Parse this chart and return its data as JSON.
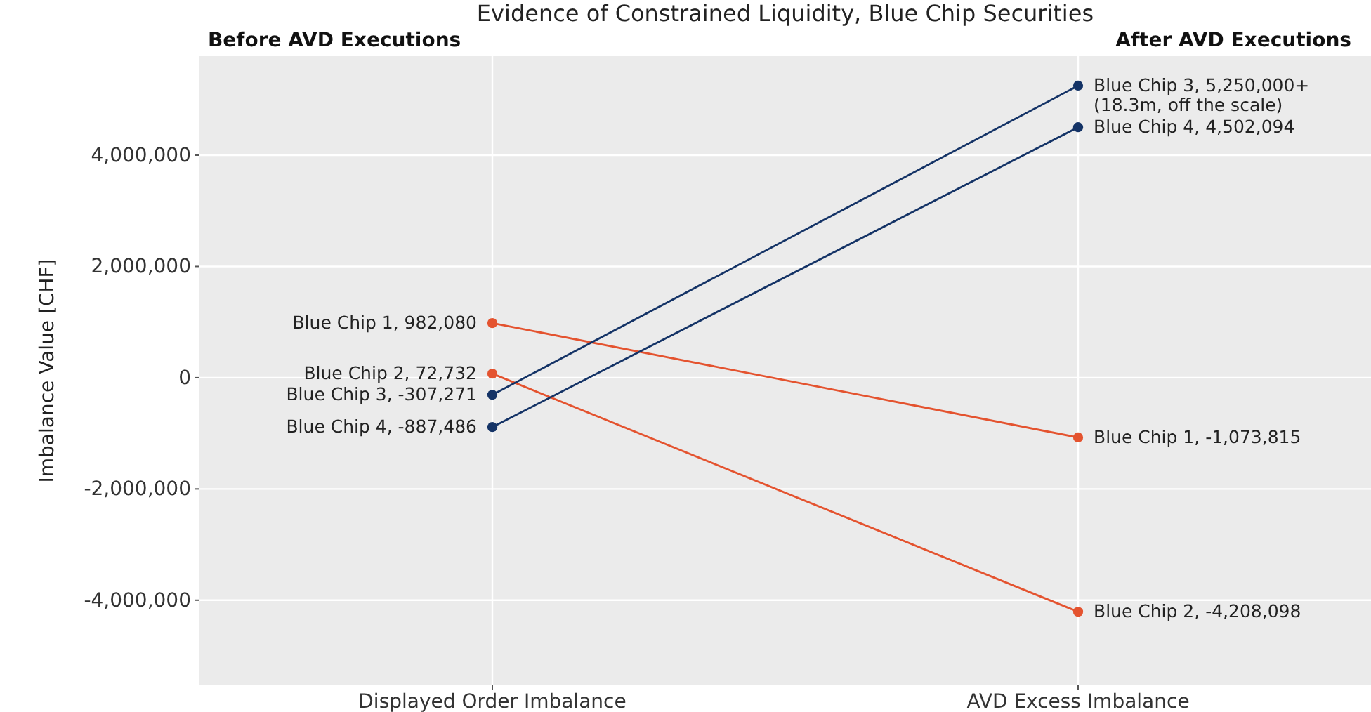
{
  "chart_data": {
    "type": "line",
    "title": "Evidence of Constrained Liquidity, Blue Chip Securities",
    "ylabel": "Imbalance Value [CHF]",
    "categories": [
      "Displayed Order Imbalance",
      "AVD Excess Imbalance"
    ],
    "annotations": [
      "Before AVD Executions",
      "After AVD Executions"
    ],
    "ylim": [
      -5530000,
      5780000
    ],
    "yticks": [
      {
        "value": -4000000,
        "label": "-4,000,000"
      },
      {
        "value": -2000000,
        "label": "-2,000,000"
      },
      0,
      {
        "value": 2000000,
        "label": "2,000,000"
      },
      {
        "value": 4000000,
        "label": "4,000,000"
      }
    ],
    "grid": true,
    "legend": false,
    "marker": "circle",
    "line_style": "solid",
    "series": [
      {
        "color": "#e4532f",
        "values": [
          982080,
          -1073815
        ],
        "value_labels": [
          "Blue Chip 1, 982,080",
          "Blue Chip 1, -1,073,815"
        ]
      },
      {
        "color": "#e4532f",
        "values": [
          72732,
          -4208098
        ],
        "value_labels": [
          "Blue Chip 2, 72,732",
          "Blue Chip 2, -4,208,098"
        ]
      },
      {
        "color": "#143366",
        "values": [
          -307271,
          5250000
        ],
        "value_labels": [
          "Blue Chip 3, -307,271",
          "Blue Chip 3, 5,250,000+\n(18.3m, off the scale)"
        ]
      },
      {
        "color": "#143366",
        "values": [
          -887486,
          4502094
        ],
        "value_labels": [
          "Blue Chip 4, -887,486",
          "Blue Chip 4, 4,502,094"
        ]
      }
    ]
  }
}
